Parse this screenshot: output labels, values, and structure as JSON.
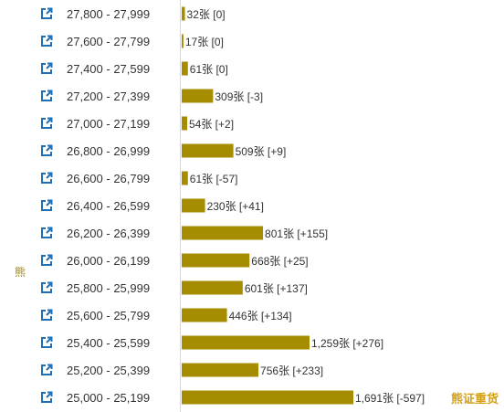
{
  "chart_data": {
    "type": "bar",
    "orientation": "horizontal",
    "bar_color": "#a68c00",
    "link_icon_color": "#1f6fb2",
    "categories": [
      "27,800 - 27,999",
      "27,600 - 27,799",
      "27,400 - 27,599",
      "27,200 - 27,399",
      "27,000 - 27,199",
      "26,800 - 26,999",
      "26,600 - 26,799",
      "26,400 - 26,599",
      "26,200 - 26,399",
      "26,000 - 26,199",
      "25,800 - 25,999",
      "25,600 - 25,799",
      "25,400 - 25,599",
      "25,200 - 25,399",
      "25,000 - 25,199"
    ],
    "values": [
      32,
      17,
      61,
      309,
      54,
      509,
      61,
      230,
      801,
      668,
      601,
      446,
      1259,
      756,
      1691
    ],
    "value_labels": [
      "32张 [0]",
      "17张 [0]",
      "61张 [0]",
      "309张 [-3]",
      "54张 [+2]",
      "509张 [+9]",
      "61张 [-57]",
      "230张 [+41]",
      "801张 [+155]",
      "668张 [+25]",
      "601张 [+137]",
      "446张 [+134]",
      "1,259张 [+276]",
      "756张 [+233]",
      "1,691张 [-597]"
    ],
    "xlim": [
      0,
      1691
    ]
  },
  "side_label": "熊",
  "corner_label": "熊证重货"
}
